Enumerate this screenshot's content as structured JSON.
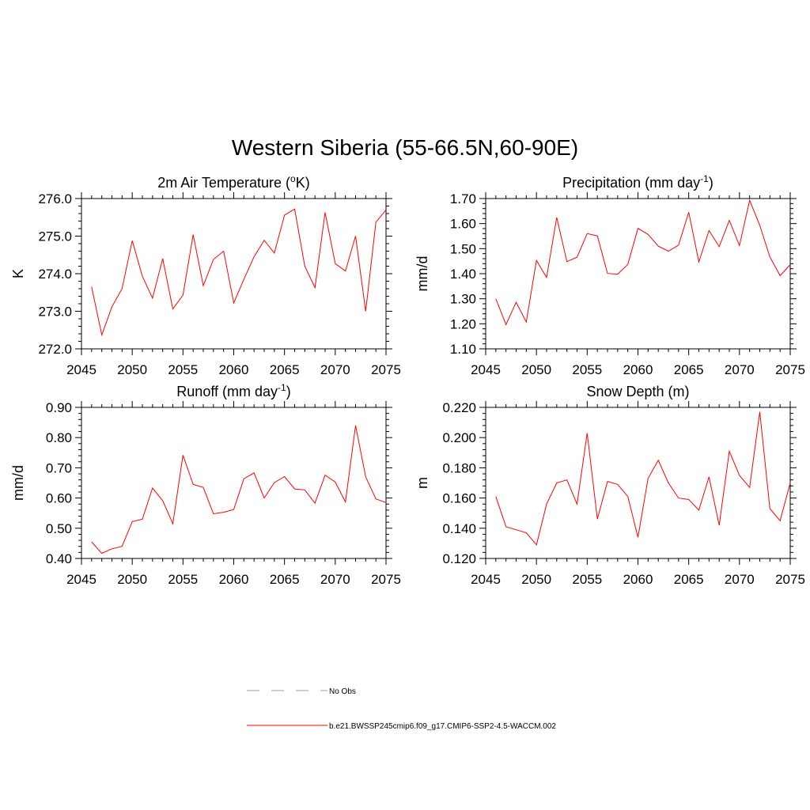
{
  "title": "Western Siberia (55-66.5N,60-90E)",
  "legend": [
    {
      "label": "No Obs",
      "color": "#9999cc",
      "dash": true
    },
    {
      "label": "b.e21.BWSSP245cmip6.f09_g17.CMIP6-SSP2-4.5-WACCM.002",
      "color": "#ff0000",
      "dash": false
    }
  ],
  "chart_data": [
    {
      "type": "line",
      "title": "2m Air Temperature (",
      "title_sup": "o",
      "title_after": "K)",
      "title_post_sup": "",
      "ylabel": "K",
      "xlim": [
        2045,
        2075
      ],
      "ylim": [
        272.0,
        276.0
      ],
      "xticks": [
        2045,
        2050,
        2055,
        2060,
        2065,
        2070,
        2075
      ],
      "yticks": [
        "272.0",
        "273.0",
        "274.0",
        "275.0",
        "276.0"
      ],
      "x": [
        2046,
        2047,
        2048,
        2049,
        2050,
        2051,
        2052,
        2053,
        2054,
        2055,
        2056,
        2057,
        2058,
        2059,
        2060,
        2061,
        2062,
        2063,
        2064,
        2065,
        2066,
        2067,
        2068,
        2069,
        2070,
        2071,
        2072,
        2073,
        2074,
        2075
      ],
      "values": [
        273.65,
        272.37,
        273.12,
        273.6,
        274.88,
        273.93,
        273.35,
        274.4,
        273.06,
        273.43,
        275.04,
        273.68,
        274.38,
        274.6,
        273.22,
        273.85,
        274.45,
        274.89,
        274.55,
        275.56,
        275.72,
        274.2,
        273.63,
        275.63,
        274.27,
        274.07,
        275.0,
        273.0,
        275.37,
        275.7
      ],
      "color": "#ff0000"
    },
    {
      "type": "line",
      "title": "Precipitation (mm day",
      "title_sup": "-1",
      "title_after": ")",
      "title_post_sup": "",
      "ylabel": "mm/d",
      "xlim": [
        2045,
        2075
      ],
      "ylim": [
        1.1,
        1.7
      ],
      "xticks": [
        2045,
        2050,
        2055,
        2060,
        2065,
        2070,
        2075
      ],
      "yticks": [
        "1.10",
        "1.20",
        "1.30",
        "1.40",
        "1.50",
        "1.60",
        "1.70"
      ],
      "x": [
        2046,
        2047,
        2048,
        2049,
        2050,
        2051,
        2052,
        2053,
        2054,
        2055,
        2056,
        2057,
        2058,
        2059,
        2060,
        2061,
        2062,
        2063,
        2064,
        2065,
        2066,
        2067,
        2068,
        2069,
        2070,
        2071,
        2072,
        2073,
        2074,
        2075
      ],
      "values": [
        1.3,
        1.197,
        1.286,
        1.207,
        1.453,
        1.385,
        1.625,
        1.448,
        1.466,
        1.56,
        1.551,
        1.401,
        1.398,
        1.437,
        1.581,
        1.557,
        1.51,
        1.49,
        1.514,
        1.645,
        1.447,
        1.572,
        1.508,
        1.613,
        1.512,
        1.693,
        1.593,
        1.467,
        1.392,
        1.436
      ],
      "color": "#ff0000"
    },
    {
      "type": "line",
      "title": "Runoff (mm day",
      "title_sup": "-1",
      "title_after": ")",
      "title_post_sup": "",
      "ylabel": "mm/d",
      "xlim": [
        2045,
        2075
      ],
      "ylim": [
        0.4,
        0.9
      ],
      "xticks": [
        2045,
        2050,
        2055,
        2060,
        2065,
        2070,
        2075
      ],
      "yticks": [
        "0.40",
        "0.50",
        "0.60",
        "0.70",
        "0.80",
        "0.90"
      ],
      "x": [
        2046,
        2047,
        2048,
        2049,
        2050,
        2051,
        2052,
        2053,
        2054,
        2055,
        2056,
        2057,
        2058,
        2059,
        2060,
        2061,
        2062,
        2063,
        2064,
        2065,
        2066,
        2067,
        2068,
        2069,
        2070,
        2071,
        2072,
        2073,
        2074,
        2075
      ],
      "values": [
        0.455,
        0.417,
        0.432,
        0.44,
        0.522,
        0.53,
        0.633,
        0.591,
        0.515,
        0.742,
        0.645,
        0.635,
        0.548,
        0.553,
        0.562,
        0.664,
        0.683,
        0.6,
        0.651,
        0.671,
        0.63,
        0.627,
        0.583,
        0.676,
        0.653,
        0.587,
        0.84,
        0.67,
        0.597,
        0.585
      ],
      "color": "#ff0000"
    },
    {
      "type": "line",
      "title": "Snow Depth (m)",
      "title_sup": "",
      "title_after": "",
      "title_post_sup": "",
      "ylabel": "m",
      "xlim": [
        2045,
        2075
      ],
      "ylim": [
        0.12,
        0.22
      ],
      "xticks": [
        2045,
        2050,
        2055,
        2060,
        2065,
        2070,
        2075
      ],
      "yticks": [
        "0.120",
        "0.140",
        "0.160",
        "0.180",
        "0.200",
        "0.220"
      ],
      "x": [
        2046,
        2047,
        2048,
        2049,
        2050,
        2051,
        2052,
        2053,
        2054,
        2055,
        2056,
        2057,
        2058,
        2059,
        2060,
        2061,
        2062,
        2063,
        2064,
        2065,
        2066,
        2067,
        2068,
        2069,
        2070,
        2071,
        2072,
        2073,
        2074,
        2075
      ],
      "values": [
        0.161,
        0.141,
        0.139,
        0.137,
        0.129,
        0.156,
        0.17,
        0.172,
        0.156,
        0.203,
        0.146,
        0.171,
        0.169,
        0.161,
        0.134,
        0.173,
        0.185,
        0.17,
        0.16,
        0.159,
        0.152,
        0.174,
        0.142,
        0.191,
        0.175,
        0.167,
        0.217,
        0.153,
        0.145,
        0.17
      ],
      "color": "#ff0000"
    }
  ]
}
